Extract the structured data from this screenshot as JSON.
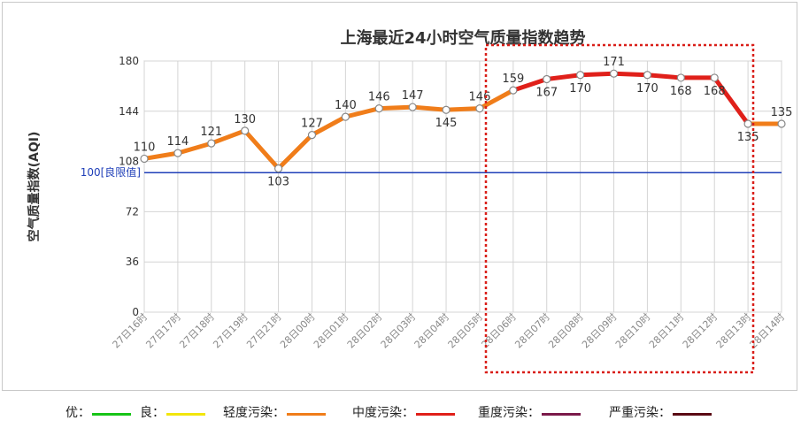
{
  "chart_data": {
    "type": "line",
    "title": "上海最近24小时空气质量指数趋势",
    "ylabel": "空气质量指数(AQI)",
    "xlabel": "",
    "ylim": [
      0,
      180
    ],
    "yticks": [
      0,
      36,
      72,
      108,
      144,
      180
    ],
    "grid": true,
    "reference_line": {
      "value": 100,
      "label": "100[良限值]",
      "color": "#1f3fb8"
    },
    "categories": [
      "27日16时",
      "27日17时",
      "27日18时",
      "27日19时",
      "27日21时",
      "28日00时",
      "28日01时",
      "28日02时",
      "28日03时",
      "28日04时",
      "28日05时",
      "28日06时",
      "28日07时",
      "28日08时",
      "28日09时",
      "28日10时",
      "28日11时",
      "28日12时",
      "28日13时",
      "28日14时"
    ],
    "x_label_positions": [
      0,
      1,
      2,
      3,
      4,
      5,
      6,
      7,
      8,
      9,
      10,
      11,
      12,
      13,
      14,
      15,
      16,
      17,
      18,
      19
    ],
    "points": [
      {
        "x": 0,
        "y": 110
      },
      {
        "x": 1,
        "y": 114
      },
      {
        "x": 2,
        "y": 121
      },
      {
        "x": 3,
        "y": 130
      },
      {
        "x": 4,
        "y": 103
      },
      {
        "x": 5,
        "y": 127
      },
      {
        "x": 6,
        "y": 140
      },
      {
        "x": 7,
        "y": 146
      },
      {
        "x": 8,
        "y": 147
      },
      {
        "x": 9,
        "y": 145
      },
      {
        "x": 10,
        "y": 146
      },
      {
        "x": 11,
        "y": 159
      },
      {
        "x": 12,
        "y": 167
      },
      {
        "x": 13,
        "y": 170
      },
      {
        "x": 14,
        "y": 171
      },
      {
        "x": 15,
        "y": 170
      },
      {
        "x": 16,
        "y": 168
      },
      {
        "x": 17,
        "y": 168
      },
      {
        "x": 18,
        "y": 135
      },
      {
        "x": 19,
        "y": 135
      }
    ],
    "data_labels": [
      "110",
      "114",
      "121",
      "130",
      "103",
      "127",
      "140",
      "146",
      "147",
      "145",
      "146",
      "159",
      "167",
      "170",
      "171",
      "170",
      "168",
      "168",
      "135",
      "135"
    ],
    "colors": {
      "moderate": "#f07d1a",
      "heavy": "#e0201a",
      "grid": "#d4d4d4",
      "highlight_box": "#d91e18"
    },
    "legend_position": "bottom",
    "legend": [
      {
        "label": "优：",
        "color": "#18c418"
      },
      {
        "label": "良：",
        "color": "#f2e60c"
      },
      {
        "label": "轻度污染：",
        "color": "#f07d1a"
      },
      {
        "label": "中度污染：",
        "color": "#e0201a"
      },
      {
        "label": "重度污染：",
        "color": "#7b1a4a"
      },
      {
        "label": "严重污染：",
        "color": "#5a0a14"
      }
    ]
  }
}
